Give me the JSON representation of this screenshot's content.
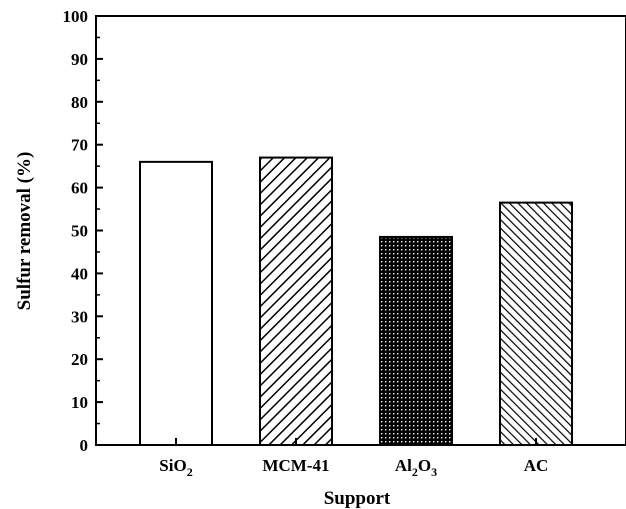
{
  "chart_data": {
    "type": "bar",
    "categories": [
      {
        "main": "SiO",
        "sub": "2",
        "tail": ""
      },
      {
        "main": "MCM-41",
        "sub": "",
        "tail": ""
      },
      {
        "main": "Al",
        "sub": "2",
        "tail": "O",
        "sub2": "3"
      },
      {
        "main": "AC",
        "sub": "",
        "tail": ""
      }
    ],
    "values": [
      66,
      67,
      48.5,
      56.5
    ],
    "patterns": [
      "none",
      "diagonal-hatch",
      "crosshatch-dense",
      "diagonal-hatch-fine"
    ],
    "xlabel": "Support",
    "ylabel": "Sulfur removal (%)",
    "ylim": [
      0,
      100
    ],
    "yticks": [
      0,
      10,
      20,
      30,
      40,
      50,
      60,
      70,
      80,
      90,
      100
    ],
    "grid": false,
    "legend": "none"
  },
  "colors": {
    "bar_stroke": "#000000",
    "bar_fill": "#ffffff",
    "hatch": "#000000"
  }
}
